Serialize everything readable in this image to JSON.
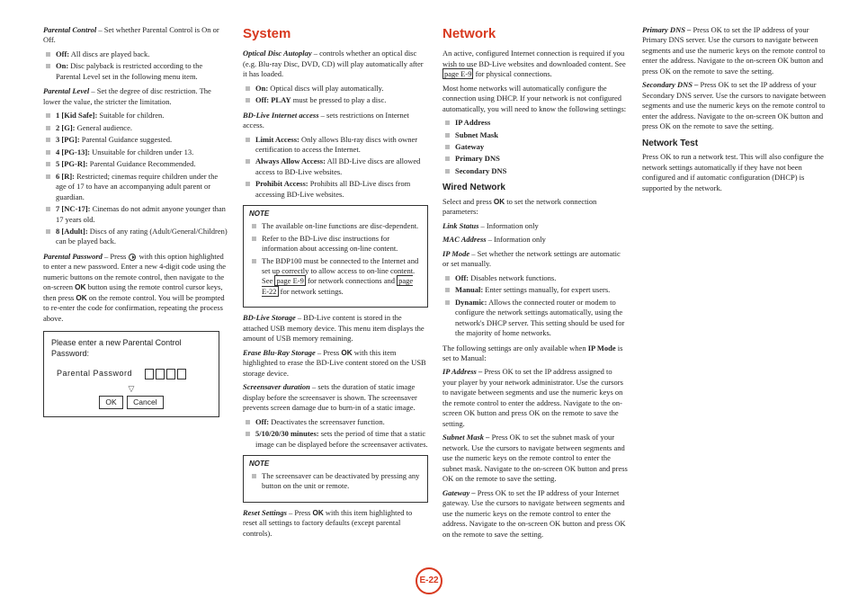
{
  "pageNumber": "E-22",
  "col1": {
    "parentalControl": {
      "lead": "Parental Control",
      "leadTail": " – Set whether Parental Control is On or Off.",
      "items": [
        {
          "b": "Off:",
          "t": " All discs are played back."
        },
        {
          "b": "On:",
          "t": " Disc palyback is restricted according to the Parental Level set in the following menu item."
        }
      ]
    },
    "parentalLevel": {
      "lead": "Parental Level",
      "leadTail": " – Set the degree of disc restriction. The lower the value, the stricter the limitation.",
      "items": [
        {
          "b": "1 [Kid Safe]:",
          "t": " Suitable for children."
        },
        {
          "b": "2 [G]:",
          "t": " General audience."
        },
        {
          "b": "3 [PG]:",
          "t": " Parental Guidance suggested."
        },
        {
          "b": "4 [PG-13]:",
          "t": " Unsuitable for children under 13."
        },
        {
          "b": "5 [PG-R]:",
          "t": " Parental Guidance Recommended."
        },
        {
          "b": "6 [R]:",
          "t": " Restricted; cinemas require children under the age of 17 to have an accompanying adult parent or guardian."
        },
        {
          "b": "7 [NC-17]:",
          "t": " Cinemas do not admit anyone younger than 17 years old."
        },
        {
          "b": "8 [Adult]:",
          "t": " Discs of any rating (Adult/General/Children) can be played back."
        }
      ]
    },
    "parentalPassword": {
      "lead": "Parental Password",
      "leadTail1": " – Press ",
      "leadTail2": " with this option highlighted to enter a new password. Enter a new 4-digit code using the numeric buttons on the remote control, then navigate to the on-screen ",
      "okBold": "OK",
      "leadTail3": " button using the remote control cursor keys, then press ",
      "leadTail4": " on the remote control. You will be prompted to re-enter the code for confirmation, repeating the process above."
    },
    "pwBox": {
      "title": "Please enter a new Parental Control Password:",
      "label": "Parental Password",
      "ok": "OK",
      "cancel": "Cancel"
    }
  },
  "col2": {
    "title": "System",
    "autoplay": {
      "lead": "Optical Disc Autoplay",
      "leadTail": " – controls whether an optical disc (e.g. Blu-ray Disc, DVD, CD) will play automatically after it has loaded.",
      "items": [
        {
          "b": "On:",
          "t": " Optical discs will play automatically."
        },
        {
          "b": "Off: PLAY",
          "t": " must be pressed to play a disc."
        }
      ]
    },
    "bdlive": {
      "lead": "BD-Live Internet access",
      "leadTail": " – sets restrictions on Internet access.",
      "items": [
        {
          "b": "Limit Access:",
          "t": " Only allows Blu-ray discs with owner certification to access the Internet."
        },
        {
          "b": "Always Allow Access:",
          "t": " All BD-Live discs are allowed access to BD-Live websites."
        },
        {
          "b": "Prohibit Access:",
          "t": " Prohibits all BD-Live discs from accessing BD-Live websites."
        }
      ]
    },
    "note1": {
      "items": [
        "The available on-line functions are disc-dependent.",
        "Refer to the BD-Live disc instructions for information about accessing on-line content."
      ],
      "last1": "The BDP100 must be connected to the Internet and set up correctly to allow access to on-line content. See ",
      "link1": "page E-9",
      "mid": " for network connections and ",
      "link2": "page E-22",
      "last2": " for network settings."
    },
    "storage": {
      "lead": "BD-Live Storage",
      "tail": " – BD-Live content is stored in the attached USB memory device. This menu item displays the amount of USB memory remaining."
    },
    "erase": {
      "lead": "Erase Blu-Ray Storage",
      "tail1": " – Press ",
      "ok": "OK",
      "tail2": " with this item highlighted to erase the BD-Live content stored on the USB storage device."
    },
    "screensaver": {
      "lead": "Screensaver duration",
      "tail": " – sets the duration of static image display before the screensaver is shown. The screensaver prevents screen damage due to burn-in of a static image.",
      "items": [
        {
          "b": "Off:",
          "t": " Deactivates the screensaver function."
        },
        {
          "b": "5/10/20/30 minutes:",
          "t": " sets the period of time that a static image can be displayed before the screensaver activates."
        }
      ]
    },
    "note2": "The screensaver can be deactivated by pressing any button on the unit or remote.",
    "reset": {
      "lead": "Reset Settings",
      "tail1": " – Press ",
      "ok": "OK",
      "tail2": " with this item highlighted to reset all settings to factory defaults (except parental controls)."
    }
  },
  "col3": {
    "title": "Network",
    "intro1": "An active, configured Internet connection is required if you wish to use BD-Live websites and downloaded content. See ",
    "introLink": "page E-9",
    "intro2": " for physical connections.",
    "intro3": "Most home networks will automatically configure the connection using DHCP. If your network is not configured automatically, you will need to know the following settings:",
    "netItems": [
      "IP Address",
      "Subnet Mask",
      "Gateway",
      "Primary DNS",
      "Secondary DNS"
    ],
    "wiredTitle": "Wired Network",
    "wired1a": "Select and press ",
    "ok": "OK",
    "wired1b": " to set the network connection parameters:",
    "linkStatus": {
      "lead": "Link Status",
      "tail": " – Information only"
    },
    "mac": {
      "lead": "MAC Address",
      "tail": " – Information only"
    },
    "ipmode": {
      "lead": "IP Mode",
      "tail": " – Set whether the network settings are automatic or set manually.",
      "items": [
        {
          "b": "Off:",
          "t": " Disables network functions."
        },
        {
          "b": "Manual:",
          "t": " Enter settings manually, for expert users."
        },
        {
          "b": "Dynamic:",
          "t": " Allows the connected router or modem to configure the network settings automatically, using the network's DHCP server. This setting should be used for the majority of home networks."
        }
      ]
    },
    "following1": "The following settings are only available when ",
    "followingB": "IP Mode",
    "following2": " is set to Manual:",
    "ipaddr": {
      "lead": "IP Address –",
      "tail": " Press OK to set the IP address assigned to your player by your network administrator. Use the cursors to navigate between segments and use the numeric keys on the remote control to enter the address. Navigate to the on-screen OK button and press OK on the remote to save the setting."
    },
    "subnet": {
      "lead": "Subnet Mask –",
      "tail": " Press OK to set the subnet mask of your network. Use the cursors to navigate between segments and use the numeric keys on the remote control to enter the subnet mask. Navigate to the on-screen OK button and press OK on the remote to save the setting."
    },
    "gateway": {
      "lead": "Gateway –",
      "tail": " Press OK to set the IP address of your Internet gateway. Use the cursors to navigate between segments and use the numeric keys on the remote control to enter the address. Navigate to the on-screen OK button and press OK on the remote to save the setting."
    }
  },
  "col4": {
    "primary": {
      "lead": "Primary DNS –",
      "tail": " Press OK to set the IP address of your Primary DNS server. Use the cursors to navigate between segments and use the numeric keys on the remote control to enter the address. Navigate to the on-screen OK button and press OK on the remote to save the setting."
    },
    "secondary": {
      "lead": "Secondary DNS –",
      "tail": " Press OK to set the IP address of your Secondary DNS server. Use the cursors to navigate between segments and use the numeric keys on the remote control to enter the address. Navigate to the on-screen OK button and press OK on the remote to save the setting."
    },
    "netTestTitle": "Network Test",
    "netTest": "Press OK to run a network test. This will also configure the network settings automatically if they have not been configured and if automatic configuration (DHCP) is supported by the network."
  }
}
